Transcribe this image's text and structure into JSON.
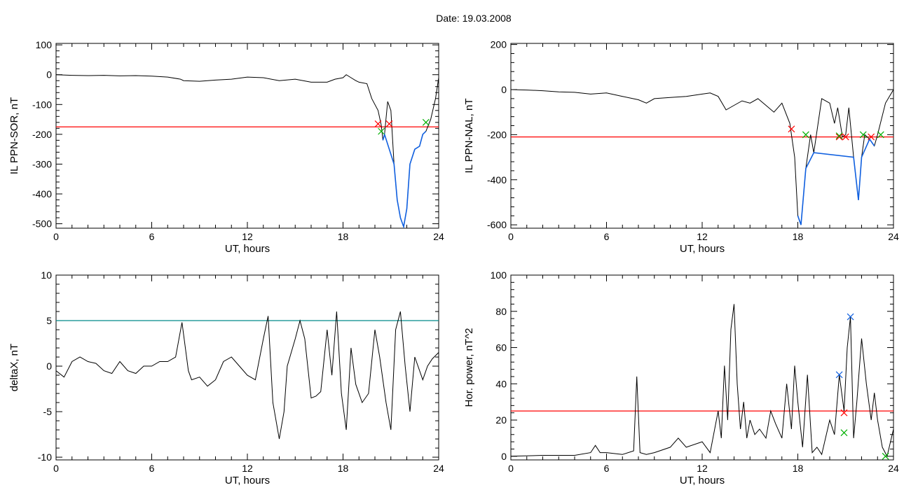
{
  "header": {
    "title": "Date:  19.03.2008"
  },
  "colors": {
    "data_line": "#000000",
    "threshold_red": "#ff0000",
    "threshold_teal": "#008b8b",
    "highlight_blue": "#1060e0",
    "marker_red": "#ff0000",
    "marker_green": "#00b000",
    "marker_blue": "#1060e0"
  },
  "chart_data": [
    {
      "id": "sor",
      "type": "line",
      "xlabel": "UT, hours",
      "ylabel": "IL PPN-SOR, nT",
      "xlim": [
        0,
        24
      ],
      "ylim": [
        -515,
        105
      ],
      "xticks": [
        0,
        6,
        12,
        18,
        24
      ],
      "yticks": [
        100,
        0,
        -100,
        -200,
        -300,
        -400,
        -500
      ],
      "threshold": {
        "value": -175,
        "color": "red"
      },
      "series": [
        {
          "x": [
            0,
            1,
            2,
            3,
            4,
            5,
            6,
            7,
            7.8,
            8,
            9,
            10,
            11,
            12,
            13,
            14,
            15,
            16,
            17,
            17.5,
            18,
            18.2,
            18.5,
            18.8,
            19,
            19.5,
            19.8,
            20,
            20.2,
            20.4,
            20.5,
            20.6,
            20.8,
            21,
            21.2,
            21.4,
            21.6,
            21.8,
            22,
            22.2,
            22.5,
            22.8,
            23,
            23.2,
            23.5,
            23.8,
            24
          ],
          "y": [
            0,
            -2,
            -3,
            -2,
            -4,
            -3,
            -5,
            -8,
            -15,
            -20,
            -22,
            -18,
            -15,
            -8,
            -10,
            -20,
            -15,
            -25,
            -25,
            -15,
            -10,
            0,
            -10,
            -20,
            -25,
            -30,
            -80,
            -100,
            -120,
            -170,
            -220,
            -200,
            -90,
            -120,
            -300,
            -420,
            -480,
            -510,
            -450,
            -300,
            -250,
            -240,
            -200,
            -190,
            -150,
            -80,
            -10
          ]
        }
      ],
      "highlight_range": [
        20.4,
        23.3
      ],
      "markers": [
        {
          "x": 20.2,
          "y": -165,
          "symbol": "x",
          "color": "red"
        },
        {
          "x": 20.9,
          "y": -165,
          "symbol": "x",
          "color": "red"
        },
        {
          "x": 20.4,
          "y": -190,
          "symbol": "x",
          "color": "green"
        },
        {
          "x": 23.2,
          "y": -160,
          "symbol": "x",
          "color": "green"
        }
      ]
    },
    {
      "id": "nal",
      "type": "line",
      "xlabel": "UT, hours",
      "ylabel": "IL PPN-NAL, nT",
      "xlim": [
        0,
        24
      ],
      "ylim": [
        -615,
        205
      ],
      "xticks": [
        0,
        6,
        12,
        18,
        24
      ],
      "yticks": [
        200,
        0,
        -200,
        -400,
        -600
      ],
      "threshold": {
        "value": -210,
        "color": "red"
      },
      "series": [
        {
          "x": [
            0,
            1,
            2,
            3,
            4,
            5,
            6,
            7,
            8,
            8.5,
            9,
            10,
            11,
            12,
            12.5,
            13,
            13.5,
            14,
            14.5,
            15,
            15.5,
            16,
            16.5,
            17,
            17.5,
            17.8,
            18,
            18.2,
            18.5,
            18.8,
            19,
            19.5,
            20,
            20.3,
            20.5,
            20.8,
            21,
            21.2,
            21.5,
            21.8,
            22,
            22.2,
            22.5,
            22.8,
            23,
            23.5,
            24
          ],
          "y": [
            0,
            -2,
            -5,
            -10,
            -12,
            -20,
            -15,
            -30,
            -45,
            -60,
            -40,
            -35,
            -30,
            -20,
            -15,
            -30,
            -90,
            -70,
            -50,
            -60,
            -40,
            -70,
            -100,
            -60,
            -150,
            -300,
            -560,
            -600,
            -350,
            -200,
            -280,
            -40,
            -60,
            -150,
            -80,
            -210,
            -200,
            -80,
            -300,
            -490,
            -300,
            -200,
            -220,
            -250,
            -200,
            -60,
            0
          ]
        }
      ],
      "highlight_range": [
        17.9,
        23.2
      ],
      "markers": [
        {
          "x": 17.6,
          "y": -175,
          "symbol": "x",
          "color": "red"
        },
        {
          "x": 18.5,
          "y": -200,
          "symbol": "x",
          "color": "green"
        },
        {
          "x": 20.6,
          "y": -210,
          "symbol": "x",
          "color": "red"
        },
        {
          "x": 20.6,
          "y": -205,
          "symbol": "x",
          "color": "green"
        },
        {
          "x": 21.0,
          "y": -210,
          "symbol": "x",
          "color": "red"
        },
        {
          "x": 22.1,
          "y": -200,
          "symbol": "x",
          "color": "green"
        },
        {
          "x": 22.6,
          "y": -210,
          "symbol": "x",
          "color": "red"
        },
        {
          "x": 23.2,
          "y": -200,
          "symbol": "x",
          "color": "green"
        }
      ]
    },
    {
      "id": "deltax",
      "type": "line",
      "xlabel": "UT, hours",
      "ylabel": "deltaX, nT",
      "xlim": [
        0,
        24
      ],
      "ylim": [
        -10.3,
        10
      ],
      "xticks": [
        0,
        6,
        12,
        18,
        24
      ],
      "yticks": [
        10,
        5,
        0,
        -5,
        -10
      ],
      "threshold": {
        "value": 5,
        "color": "teal"
      },
      "series": [
        {
          "x": [
            0,
            0.5,
            1,
            1.5,
            2,
            2.5,
            3,
            3.5,
            4,
            4.5,
            5,
            5.5,
            6,
            6.5,
            7,
            7.5,
            7.9,
            8.3,
            8.5,
            9,
            9.5,
            10,
            10.5,
            11,
            11.5,
            12,
            12.5,
            13,
            13.3,
            13.6,
            14,
            14.3,
            14.5,
            15,
            15.3,
            15.6,
            16,
            16.3,
            16.6,
            17,
            17.3,
            17.6,
            17.9,
            18.2,
            18.5,
            18.8,
            19.2,
            19.6,
            20,
            20.3,
            20.7,
            21,
            21.3,
            21.6,
            21.9,
            22.2,
            22.5,
            23,
            23.3,
            23.6,
            24
          ],
          "y": [
            -0.5,
            -1.2,
            0.5,
            1,
            0.5,
            0.3,
            -0.5,
            -0.8,
            0.5,
            -0.5,
            -0.8,
            0,
            0,
            0.5,
            0.5,
            1,
            4.8,
            -0.5,
            -1.5,
            -1.2,
            -2.2,
            -1.5,
            0.5,
            1,
            0,
            -1,
            -1.5,
            3,
            5.5,
            -4,
            -8,
            -5,
            0,
            3,
            5,
            3,
            -3.5,
            -3.3,
            -2.8,
            4,
            -1,
            6,
            -3,
            -7,
            2,
            -2,
            -4,
            -3,
            4,
            1,
            -4,
            -7,
            4,
            6,
            0,
            -5,
            1,
            -1.5,
            0,
            0.8,
            1.5
          ]
        }
      ],
      "markers": []
    },
    {
      "id": "power",
      "type": "line",
      "xlabel": "UT, hours",
      "ylabel": "Hor. power, nT^2",
      "xlim": [
        0,
        24
      ],
      "ylim": [
        -2,
        100
      ],
      "xticks": [
        0,
        6,
        12,
        18,
        24
      ],
      "yticks": [
        100,
        80,
        60,
        40,
        20,
        0
      ],
      "threshold": {
        "value": 25,
        "color": "red"
      },
      "series": [
        {
          "x": [
            0,
            2,
            4,
            5,
            5.3,
            5.6,
            6,
            7,
            7.7,
            7.9,
            8.1,
            8.5,
            9,
            10,
            10.5,
            11,
            12,
            12.5,
            13,
            13.2,
            13.4,
            13.6,
            13.8,
            14,
            14.2,
            14.4,
            14.6,
            14.8,
            15,
            15.3,
            15.6,
            16,
            16.3,
            16.6,
            17,
            17.3,
            17.6,
            17.8,
            18,
            18.3,
            18.6,
            18.9,
            19.2,
            19.5,
            20,
            20.3,
            20.6,
            20.9,
            21.1,
            21.3,
            21.5,
            21.7,
            22,
            22.3,
            22.6,
            22.8,
            23,
            23.3,
            23.6,
            24
          ],
          "y": [
            0,
            0.5,
            0.5,
            2,
            6,
            2,
            2,
            1,
            3,
            44,
            2,
            1,
            2,
            5,
            10,
            5,
            8,
            2,
            25,
            10,
            50,
            20,
            70,
            84,
            40,
            15,
            30,
            10,
            20,
            12,
            15,
            10,
            25,
            18,
            10,
            40,
            15,
            50,
            30,
            5,
            45,
            2,
            5,
            1,
            20,
            12,
            45,
            25,
            60,
            77,
            10,
            30,
            65,
            40,
            20,
            35,
            20,
            5,
            0,
            15
          ]
        }
      ],
      "markers": [
        {
          "x": 20.6,
          "y": 45,
          "symbol": "x",
          "color": "blue"
        },
        {
          "x": 21.3,
          "y": 77,
          "symbol": "x",
          "color": "blue"
        },
        {
          "x": 20.9,
          "y": 24,
          "symbol": "x",
          "color": "red"
        },
        {
          "x": 20.9,
          "y": 13,
          "symbol": "x",
          "color": "green"
        },
        {
          "x": 23.5,
          "y": 0,
          "symbol": "x",
          "color": "green"
        }
      ]
    }
  ]
}
